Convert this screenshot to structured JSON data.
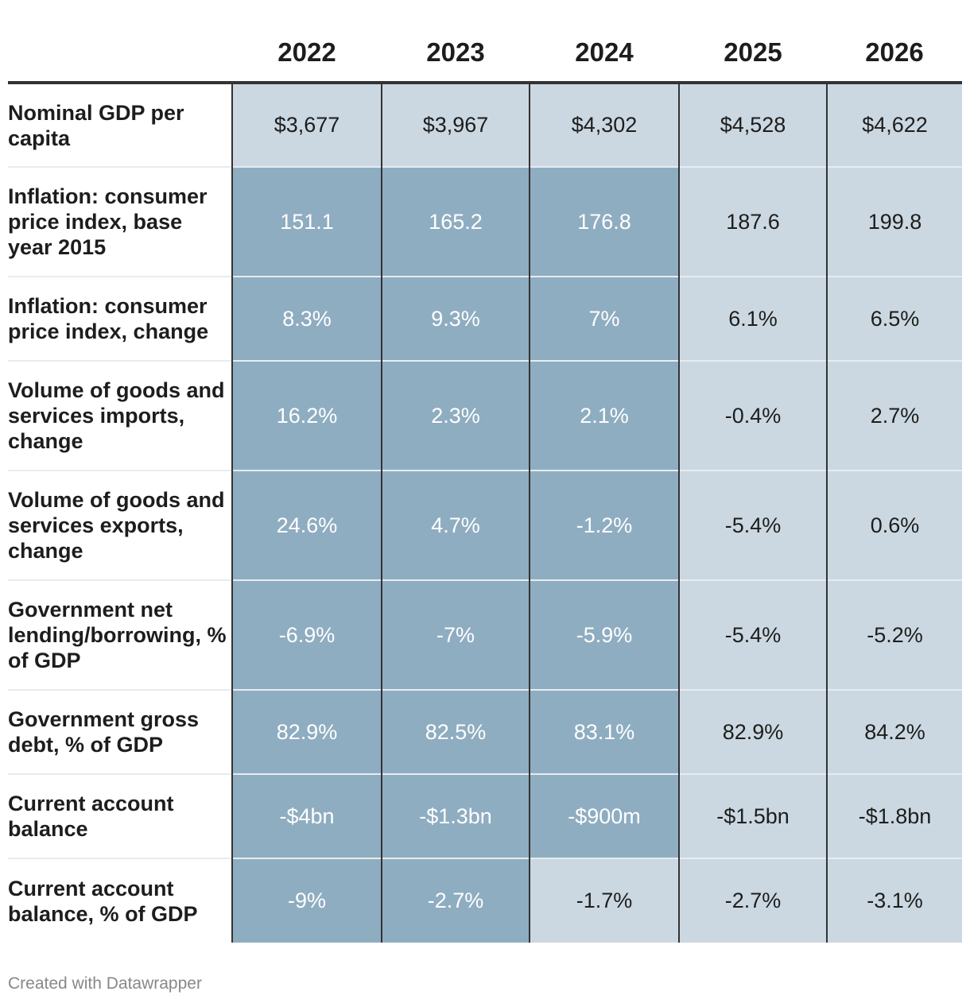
{
  "chart_data": {
    "type": "table",
    "columns": [
      "2022",
      "2023",
      "2024",
      "2025",
      "2026"
    ],
    "rows": [
      {
        "label": "Nominal GDP per capita",
        "values": [
          "$3,677",
          "$3,967",
          "$4,302",
          "$4,528",
          "$4,622"
        ],
        "dark": [
          false,
          false,
          false,
          false,
          false
        ]
      },
      {
        "label": "Inflation: consumer price index, base year 2015",
        "values": [
          "151.1",
          "165.2",
          "176.8",
          "187.6",
          "199.8"
        ],
        "dark": [
          true,
          true,
          true,
          false,
          false
        ]
      },
      {
        "label": "Inflation: consumer price index, change",
        "values": [
          "8.3%",
          "9.3%",
          "7%",
          "6.1%",
          "6.5%"
        ],
        "dark": [
          true,
          true,
          true,
          false,
          false
        ]
      },
      {
        "label": "Volume of goods and services imports, change",
        "values": [
          "16.2%",
          "2.3%",
          "2.1%",
          "-0.4%",
          "2.7%"
        ],
        "dark": [
          true,
          true,
          true,
          false,
          false
        ]
      },
      {
        "label": "Volume of goods and services exports, change",
        "values": [
          "24.6%",
          "4.7%",
          "-1.2%",
          "-5.4%",
          "0.6%"
        ],
        "dark": [
          true,
          true,
          true,
          false,
          false
        ]
      },
      {
        "label": "Government net lending/borrowing, % of GDP",
        "values": [
          "-6.9%",
          "-7%",
          "-5.9%",
          "-5.4%",
          "-5.2%"
        ],
        "dark": [
          true,
          true,
          true,
          false,
          false
        ]
      },
      {
        "label": "Government gross debt, % of GDP",
        "values": [
          "82.9%",
          "82.5%",
          "83.1%",
          "82.9%",
          "84.2%"
        ],
        "dark": [
          true,
          true,
          true,
          false,
          false
        ]
      },
      {
        "label": "Current account balance",
        "values": [
          "-$4bn",
          "-$1.3bn",
          "-$900m",
          "-$1.5bn",
          "-$1.8bn"
        ],
        "dark": [
          true,
          true,
          true,
          false,
          false
        ]
      },
      {
        "label": "Current account balance, % of GDP",
        "values": [
          "-9%",
          "-2.7%",
          "-1.7%",
          "-2.7%",
          "-3.1%"
        ],
        "dark": [
          true,
          true,
          false,
          false,
          false
        ]
      }
    ]
  },
  "colors": {
    "dark_cell": "#8fadc1",
    "light_cell": "#cbd8e1"
  },
  "footer": "Created with Datawrapper"
}
